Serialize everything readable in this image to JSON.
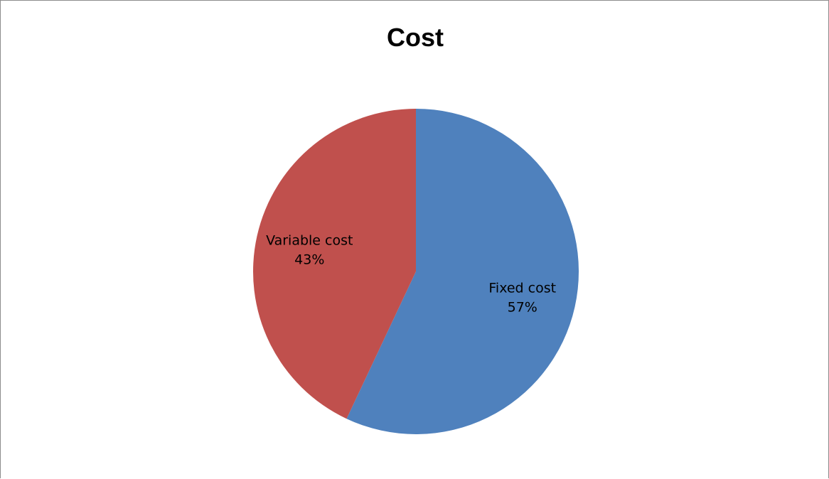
{
  "chart_data": {
    "type": "pie",
    "title": "Cost",
    "slices": [
      {
        "label": "Fixed cost",
        "percent_label": "57%",
        "value": 57,
        "color": "#4f81bd"
      },
      {
        "label": "Variable cost",
        "percent_label": "43%",
        "value": 43,
        "color": "#c0504d"
      }
    ],
    "legend": "none",
    "data_labels": "inside"
  }
}
